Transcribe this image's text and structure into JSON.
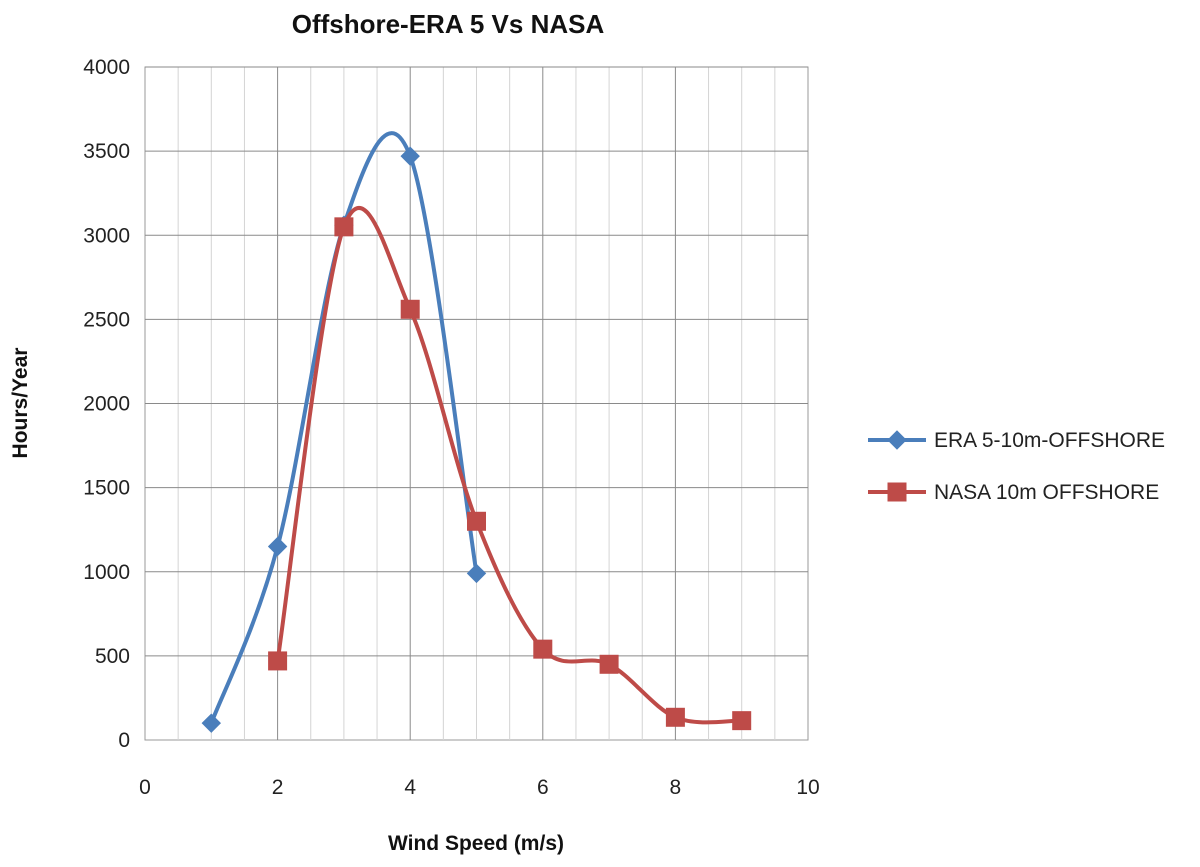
{
  "chart_data": {
    "type": "line",
    "title": "Offshore-ERA 5 Vs NASA",
    "xlabel": "Wind Speed (m/s)",
    "ylabel": "Hours/Year",
    "xlim": [
      0,
      10
    ],
    "ylim": [
      0,
      4000
    ],
    "x_ticks": [
      "0",
      "2",
      "4",
      "6",
      "8",
      "10"
    ],
    "y_ticks": [
      "0",
      "500",
      "1000",
      "1500",
      "2000",
      "2500",
      "3000",
      "3500",
      "4000"
    ],
    "grid": true,
    "smooth": true,
    "legend_position": "right",
    "series": [
      {
        "name": "ERA 5-10m-OFFSHORE",
        "color": "#4a7ebb",
        "marker": "diamond",
        "x": [
          1,
          2,
          3,
          4,
          5
        ],
        "values": [
          100,
          1150,
          3060,
          3470,
          990
        ]
      },
      {
        "name": "NASA 10m OFFSHORE",
        "color": "#be4b48",
        "marker": "square",
        "x": [
          2,
          3,
          4,
          5,
          6,
          7,
          8,
          9
        ],
        "values": [
          470,
          3050,
          2560,
          1300,
          540,
          450,
          135,
          115
        ]
      }
    ]
  }
}
